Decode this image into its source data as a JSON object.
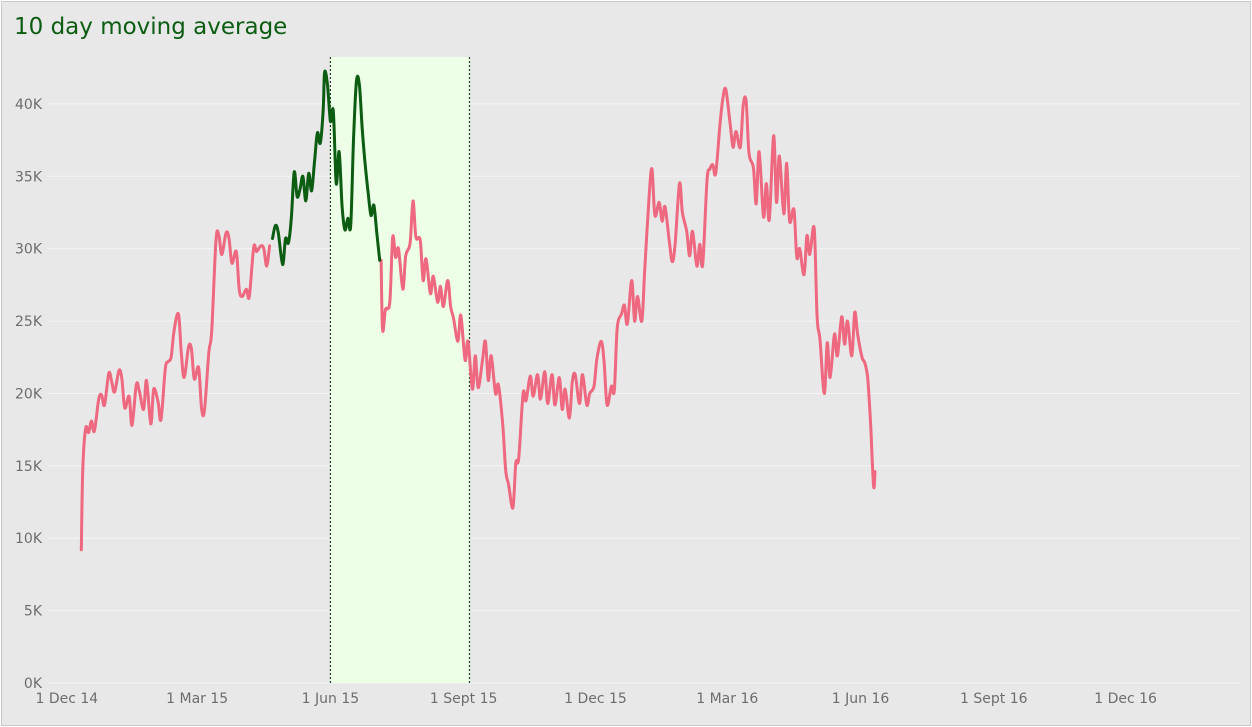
{
  "chart_data": {
    "type": "line",
    "title": "10 day moving average",
    "xlabel": "",
    "ylabel": "",
    "x_range": [
      "2014-11-18",
      "2017-02-18"
    ],
    "ylim": [
      0,
      44000
    ],
    "y_ticks": [
      0,
      5000,
      10000,
      15000,
      20000,
      25000,
      30000,
      35000,
      40000
    ],
    "y_tick_labels": [
      "0K",
      "5K",
      "10K",
      "15K",
      "20K",
      "25K",
      "30K",
      "35K",
      "40K"
    ],
    "x_ticks": [
      "2014-12-01",
      "2015-03-01",
      "2015-06-01",
      "2015-09-01",
      "2015-12-01",
      "2016-03-01",
      "2016-06-01",
      "2016-09-01",
      "2016-12-01"
    ],
    "x_tick_labels": [
      "1 Dec 14",
      "1 Mar 15",
      "1 Jun 15",
      "1 Sept 15",
      "1 Dec 15",
      "1 Mar 16",
      "1 Jun 16",
      "1 Sept 16",
      "1 Dec 16"
    ],
    "grid": true,
    "highlight": {
      "start": "2015-06-01",
      "end": "2015-09-05",
      "fill": "#eeffe8",
      "border": "#1f3f22"
    },
    "colors": {
      "line": "#ee6880",
      "highlight_line": "#0c5c12",
      "grid": "#f4f4f4",
      "background": "#e8e8e8"
    },
    "series": [
      {
        "points": [
          [
            "2014-12-11",
            9200
          ],
          [
            "2014-12-12",
            14800
          ],
          [
            "2014-12-14",
            17600
          ],
          [
            "2014-12-16",
            17300
          ],
          [
            "2014-12-18",
            18100
          ],
          [
            "2014-12-20",
            17400
          ],
          [
            "2014-12-23",
            19600
          ],
          [
            "2014-12-25",
            19900
          ],
          [
            "2014-12-27",
            19200
          ],
          [
            "2014-12-30",
            21400
          ],
          [
            "2015-01-01",
            20800
          ],
          [
            "2015-01-03",
            20100
          ],
          [
            "2015-01-06",
            21600
          ],
          [
            "2015-01-08",
            21000
          ],
          [
            "2015-01-10",
            19000
          ],
          [
            "2015-01-13",
            19800
          ],
          [
            "2015-01-15",
            17800
          ],
          [
            "2015-01-18",
            20600
          ],
          [
            "2015-01-20",
            20200
          ],
          [
            "2015-01-23",
            18900
          ],
          [
            "2015-01-25",
            20900
          ],
          [
            "2015-01-28",
            17900
          ],
          [
            "2015-01-30",
            20300
          ],
          [
            "2015-02-02",
            19400
          ],
          [
            "2015-02-04",
            18200
          ],
          [
            "2015-02-07",
            21700
          ],
          [
            "2015-02-09",
            22200
          ],
          [
            "2015-02-11",
            22500
          ],
          [
            "2015-02-13",
            24300
          ],
          [
            "2015-02-16",
            25500
          ],
          [
            "2015-02-18",
            22900
          ],
          [
            "2015-02-20",
            21100
          ],
          [
            "2015-02-23",
            23200
          ],
          [
            "2015-02-25",
            23100
          ],
          [
            "2015-02-27",
            21000
          ],
          [
            "2015-03-02",
            21800
          ],
          [
            "2015-03-04",
            19000
          ],
          [
            "2015-03-06",
            18800
          ],
          [
            "2015-03-09",
            22800
          ],
          [
            "2015-03-11",
            24300
          ],
          [
            "2015-03-14",
            30600
          ],
          [
            "2015-03-16",
            30900
          ],
          [
            "2015-03-18",
            29600
          ],
          [
            "2015-03-21",
            31100
          ],
          [
            "2015-03-23",
            30700
          ],
          [
            "2015-03-25",
            29000
          ],
          [
            "2015-03-28",
            29800
          ],
          [
            "2015-03-30",
            27200
          ],
          [
            "2015-04-01",
            26700
          ],
          [
            "2015-04-04",
            27200
          ],
          [
            "2015-04-06",
            26700
          ],
          [
            "2015-04-09",
            30100
          ],
          [
            "2015-04-11",
            29800
          ],
          [
            "2015-04-14",
            30200
          ],
          [
            "2015-04-16",
            30000
          ],
          [
            "2015-04-18",
            28800
          ],
          [
            "2015-04-20",
            30200
          ]
        ]
      },
      {
        "highlighted": true,
        "points": [
          [
            "2015-04-22",
            30700
          ],
          [
            "2015-04-24",
            31600
          ],
          [
            "2015-04-26",
            31100
          ],
          [
            "2015-04-29",
            28900
          ],
          [
            "2015-05-01",
            30700
          ],
          [
            "2015-05-03",
            30400
          ],
          [
            "2015-05-05",
            32100
          ],
          [
            "2015-05-07",
            35300
          ],
          [
            "2015-05-09",
            33600
          ],
          [
            "2015-05-11",
            34100
          ],
          [
            "2015-05-13",
            35000
          ],
          [
            "2015-05-15",
            33300
          ],
          [
            "2015-05-17",
            35200
          ],
          [
            "2015-05-19",
            34000
          ],
          [
            "2015-05-21",
            36000
          ],
          [
            "2015-05-23",
            38000
          ],
          [
            "2015-05-25",
            37300
          ],
          [
            "2015-05-27",
            39600
          ],
          [
            "2015-05-28",
            42200
          ],
          [
            "2015-05-30",
            41300
          ],
          [
            "2015-06-01",
            38800
          ],
          [
            "2015-06-03",
            39500
          ],
          [
            "2015-06-05",
            34500
          ],
          [
            "2015-06-07",
            36700
          ],
          [
            "2015-06-09",
            33000
          ],
          [
            "2015-06-11",
            31300
          ],
          [
            "2015-06-13",
            32100
          ],
          [
            "2015-06-15",
            31600
          ],
          [
            "2015-06-17",
            37700
          ],
          [
            "2015-06-19",
            41600
          ],
          [
            "2015-06-21",
            41300
          ],
          [
            "2015-06-23",
            38200
          ],
          [
            "2015-06-25",
            35800
          ],
          [
            "2015-06-27",
            33900
          ],
          [
            "2015-06-29",
            32300
          ],
          [
            "2015-07-01",
            33000
          ],
          [
            "2015-07-03",
            31100
          ],
          [
            "2015-07-05",
            29200
          ]
        ]
      },
      {
        "points": [
          [
            "2015-07-06",
            29200
          ],
          [
            "2015-07-07",
            24400
          ],
          [
            "2015-07-09",
            25800
          ],
          [
            "2015-07-12",
            26300
          ],
          [
            "2015-07-14",
            30800
          ],
          [
            "2015-07-16",
            29400
          ],
          [
            "2015-07-18",
            30000
          ],
          [
            "2015-07-21",
            27200
          ],
          [
            "2015-07-23",
            29500
          ],
          [
            "2015-07-26",
            30400
          ],
          [
            "2015-07-28",
            33300
          ],
          [
            "2015-07-30",
            30800
          ],
          [
            "2015-08-02",
            30600
          ],
          [
            "2015-08-04",
            27800
          ],
          [
            "2015-08-06",
            29300
          ],
          [
            "2015-08-09",
            26900
          ],
          [
            "2015-08-11",
            28100
          ],
          [
            "2015-08-14",
            26300
          ],
          [
            "2015-08-16",
            27400
          ],
          [
            "2015-08-18",
            26000
          ],
          [
            "2015-08-21",
            27800
          ],
          [
            "2015-08-23",
            26000
          ],
          [
            "2015-08-25",
            25200
          ],
          [
            "2015-08-28",
            23600
          ],
          [
            "2015-08-30",
            25400
          ],
          [
            "2015-09-02",
            22300
          ],
          [
            "2015-09-04",
            23600
          ],
          [
            "2015-09-07",
            20300
          ],
          [
            "2015-09-09",
            22600
          ],
          [
            "2015-09-11",
            20400
          ],
          [
            "2015-09-14",
            22300
          ],
          [
            "2015-09-16",
            23600
          ],
          [
            "2015-09-18",
            20900
          ],
          [
            "2015-09-20",
            22600
          ],
          [
            "2015-09-23",
            20000
          ],
          [
            "2015-09-25",
            20600
          ],
          [
            "2015-09-28",
            17800
          ],
          [
            "2015-09-30",
            14700
          ],
          [
            "2015-10-02",
            13700
          ],
          [
            "2015-10-05",
            12100
          ],
          [
            "2015-10-07",
            15200
          ],
          [
            "2015-10-09",
            15500
          ],
          [
            "2015-10-12",
            20000
          ],
          [
            "2015-10-14",
            19500
          ],
          [
            "2015-10-17",
            21200
          ],
          [
            "2015-10-19",
            19800
          ],
          [
            "2015-10-22",
            21300
          ],
          [
            "2015-10-24",
            19600
          ],
          [
            "2015-10-27",
            21500
          ],
          [
            "2015-10-29",
            19300
          ],
          [
            "2015-11-01",
            21300
          ],
          [
            "2015-11-03",
            19200
          ],
          [
            "2015-11-06",
            21100
          ],
          [
            "2015-11-08",
            18900
          ],
          [
            "2015-11-10",
            20300
          ],
          [
            "2015-11-13",
            18300
          ],
          [
            "2015-11-15",
            20800
          ],
          [
            "2015-11-17",
            21300
          ],
          [
            "2015-11-20",
            19300
          ],
          [
            "2015-11-22",
            21300
          ],
          [
            "2015-11-25",
            19200
          ],
          [
            "2015-11-27",
            20000
          ],
          [
            "2015-11-30",
            20500
          ],
          [
            "2015-12-02",
            22400
          ],
          [
            "2015-12-05",
            23600
          ],
          [
            "2015-12-07",
            22100
          ],
          [
            "2015-12-09",
            19200
          ],
          [
            "2015-12-12",
            20500
          ],
          [
            "2015-12-14",
            20200
          ],
          [
            "2015-12-16",
            24500
          ],
          [
            "2015-12-19",
            25500
          ],
          [
            "2015-12-21",
            26100
          ],
          [
            "2015-12-23",
            24800
          ],
          [
            "2015-12-26",
            27800
          ],
          [
            "2015-12-28",
            25000
          ],
          [
            "2015-12-30",
            26700
          ],
          [
            "2016-01-02",
            25000
          ],
          [
            "2016-01-04",
            28500
          ],
          [
            "2016-01-07",
            33600
          ],
          [
            "2016-01-09",
            35500
          ],
          [
            "2016-01-11",
            32300
          ],
          [
            "2016-01-14",
            33200
          ],
          [
            "2016-01-16",
            31900
          ],
          [
            "2016-01-18",
            32900
          ],
          [
            "2016-01-21",
            30500
          ],
          [
            "2016-01-23",
            29100
          ],
          [
            "2016-01-25",
            30300
          ],
          [
            "2016-01-28",
            34500
          ],
          [
            "2016-01-30",
            32500
          ],
          [
            "2016-02-02",
            31200
          ],
          [
            "2016-02-04",
            29500
          ],
          [
            "2016-02-06",
            31200
          ],
          [
            "2016-02-09",
            28800
          ],
          [
            "2016-02-11",
            30300
          ],
          [
            "2016-02-13",
            28900
          ],
          [
            "2016-02-16",
            34700
          ],
          [
            "2016-02-18",
            35500
          ],
          [
            "2016-02-20",
            35800
          ],
          [
            "2016-02-22",
            35200
          ],
          [
            "2016-02-25",
            38600
          ],
          [
            "2016-02-27",
            40400
          ],
          [
            "2016-02-29",
            41000
          ],
          [
            "2016-03-03",
            38600
          ],
          [
            "2016-03-05",
            37000
          ],
          [
            "2016-03-07",
            38100
          ],
          [
            "2016-03-10",
            37000
          ],
          [
            "2016-03-12",
            39900
          ],
          [
            "2016-03-14",
            40200
          ],
          [
            "2016-03-16",
            36600
          ],
          [
            "2016-03-19",
            35600
          ],
          [
            "2016-03-21",
            33100
          ],
          [
            "2016-03-23",
            36700
          ],
          [
            "2016-03-26",
            32200
          ],
          [
            "2016-03-28",
            34500
          ],
          [
            "2016-03-30",
            32000
          ],
          [
            "2016-04-02",
            37800
          ],
          [
            "2016-04-04",
            33200
          ],
          [
            "2016-04-06",
            36400
          ],
          [
            "2016-04-09",
            32400
          ],
          [
            "2016-04-11",
            35900
          ],
          [
            "2016-04-13",
            31900
          ],
          [
            "2016-04-16",
            32700
          ],
          [
            "2016-04-18",
            29400
          ],
          [
            "2016-04-20",
            30000
          ],
          [
            "2016-04-23",
            28200
          ],
          [
            "2016-04-25",
            30900
          ],
          [
            "2016-04-27",
            29600
          ],
          [
            "2016-04-30",
            31400
          ],
          [
            "2016-05-02",
            25300
          ],
          [
            "2016-05-04",
            23700
          ],
          [
            "2016-05-07",
            20000
          ],
          [
            "2016-05-09",
            23500
          ],
          [
            "2016-05-11",
            21100
          ],
          [
            "2016-05-14",
            24100
          ],
          [
            "2016-05-16",
            22600
          ],
          [
            "2016-05-19",
            25300
          ],
          [
            "2016-05-21",
            23400
          ],
          [
            "2016-05-23",
            25000
          ],
          [
            "2016-05-26",
            22600
          ],
          [
            "2016-05-28",
            25600
          ],
          [
            "2016-05-30",
            24100
          ],
          [
            "2016-06-02",
            22500
          ],
          [
            "2016-06-04",
            22100
          ],
          [
            "2016-06-06",
            21000
          ],
          [
            "2016-06-08",
            17800
          ],
          [
            "2016-06-10",
            13600
          ],
          [
            "2016-06-11",
            14600
          ]
        ]
      }
    ]
  }
}
